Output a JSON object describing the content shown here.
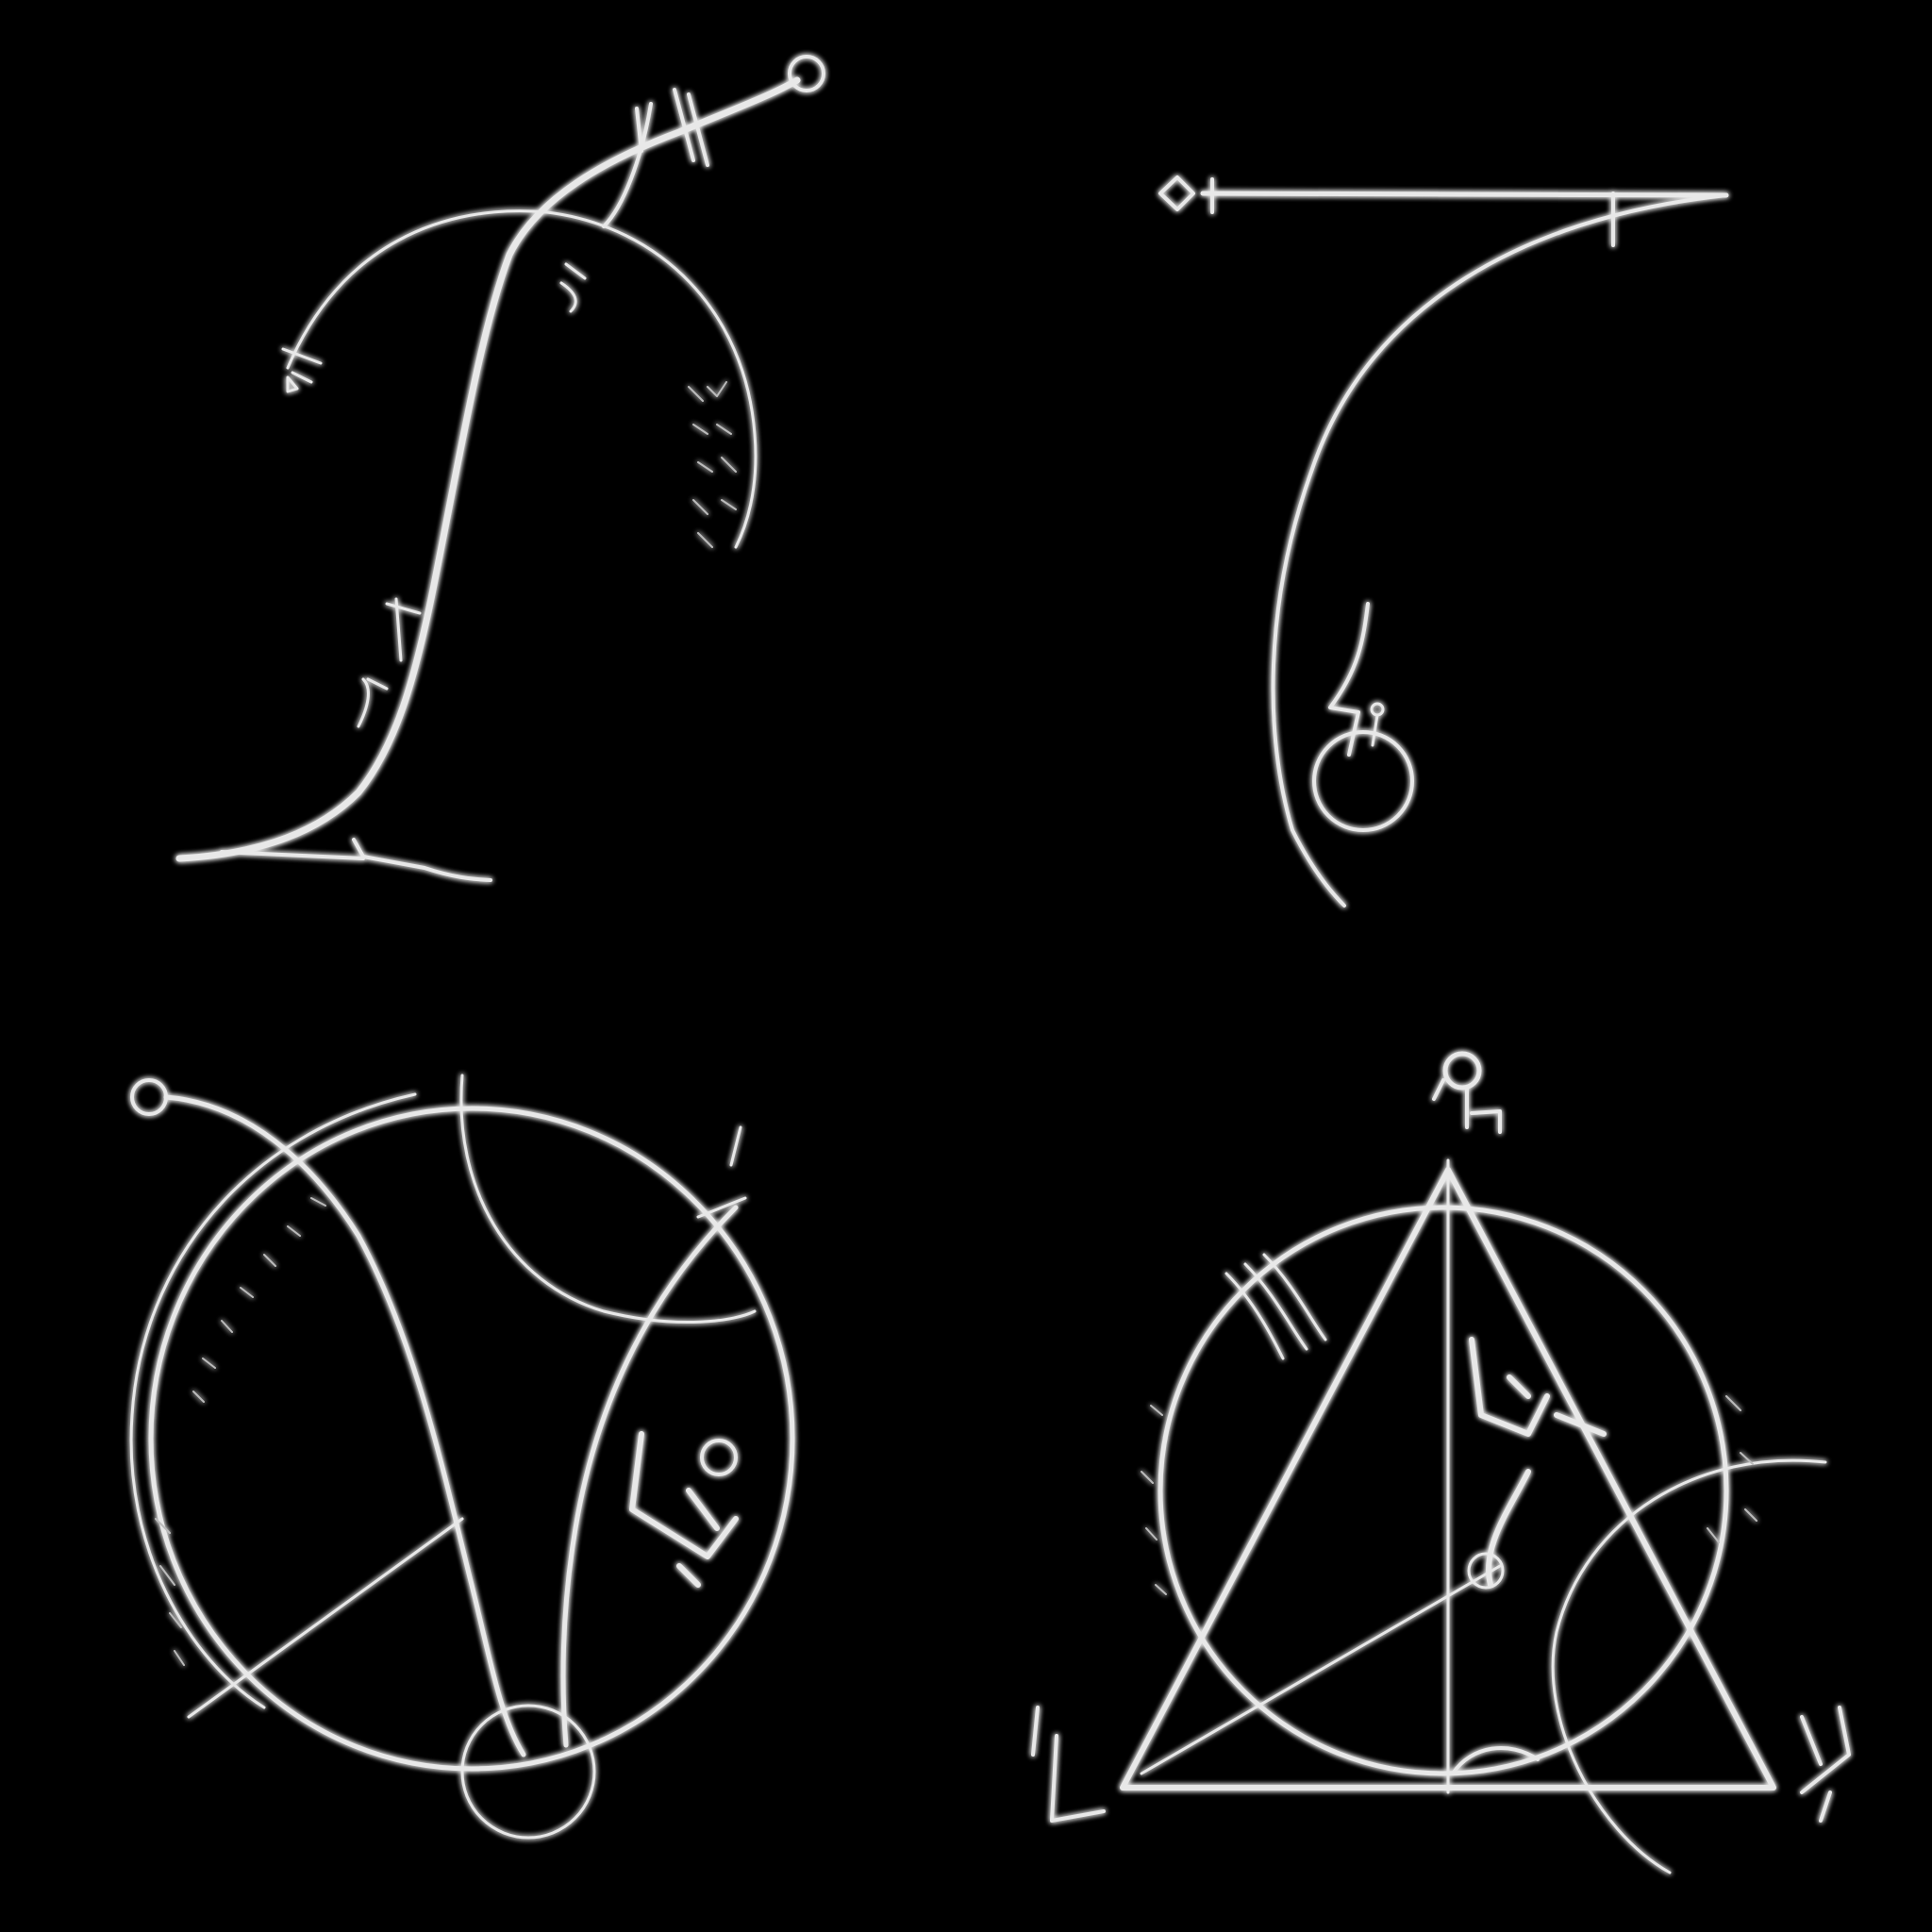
{
  "canvas": {
    "background": "#000000",
    "stroke_color": "#e8e8e8",
    "glow_color": "#ffffff"
  },
  "sigils": [
    {
      "name": "sigil-top-left",
      "icon": "staff-arc-sigil-icon"
    },
    {
      "name": "sigil-top-right",
      "icon": "hook-sigil-icon"
    },
    {
      "name": "sigil-bottom-left",
      "icon": "circle-arcs-sigil-icon"
    },
    {
      "name": "sigil-bottom-right",
      "icon": "triangle-circle-sigil-icon"
    }
  ]
}
